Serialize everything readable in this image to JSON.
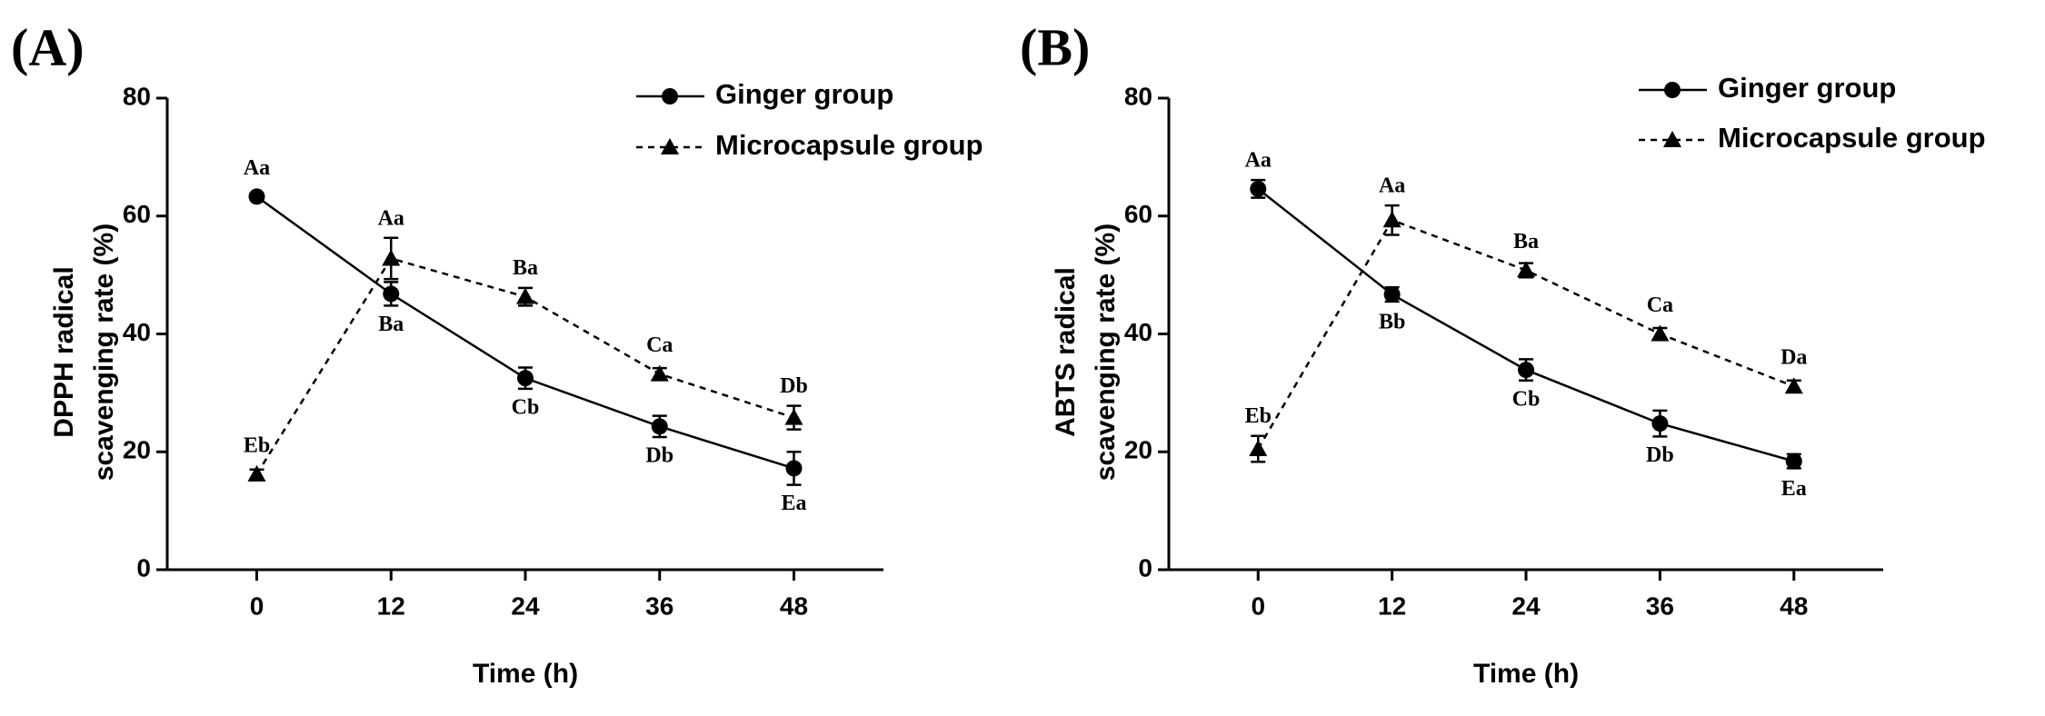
{
  "chart_data": [
    {
      "type": "line",
      "panel": "(A)",
      "ylabel": [
        "DPPH radical",
        "scavenging rate (%)"
      ],
      "xlabel": "Time (h)",
      "x": [
        0,
        12,
        24,
        36,
        48
      ],
      "xlim": [
        -8,
        56
      ],
      "xticks": [
        0,
        12,
        24,
        36,
        48
      ],
      "ylim": [
        0,
        80
      ],
      "yticks": [
        0,
        20,
        40,
        60,
        80
      ],
      "series": [
        {
          "name": "Ginger group",
          "color": "#000000",
          "marker": "circle",
          "dash": false,
          "values": [
            63.3,
            46.8,
            32.5,
            24.3,
            17.2
          ],
          "errors": [
            0.5,
            2.0,
            1.8,
            1.8,
            2.8
          ],
          "annotations": [
            "Aa",
            "Ba",
            "Cb",
            "Db",
            "Ea"
          ]
        },
        {
          "name": "Microcapsule group",
          "color": "#000000",
          "marker": "triangle",
          "dash": true,
          "values": [
            16.2,
            52.8,
            46.3,
            33.2,
            25.8
          ],
          "errors": [
            0.8,
            3.5,
            1.5,
            1.0,
            2.0
          ],
          "annotations": [
            "Eb",
            "Aa",
            "Ba",
            "Ca",
            "Db"
          ]
        }
      ]
    },
    {
      "type": "line",
      "panel": "(B)",
      "ylabel": [
        "ABTS radical",
        "scavenging rate (%)"
      ],
      "xlabel": "Time (h)",
      "x": [
        0,
        12,
        24,
        36,
        48
      ],
      "xlim": [
        -8,
        56
      ],
      "xticks": [
        0,
        12,
        24,
        36,
        48
      ],
      "ylim": [
        0,
        80
      ],
      "yticks": [
        0,
        20,
        40,
        60,
        80
      ],
      "series": [
        {
          "name": "Ginger group",
          "color": "#000000",
          "marker": "circle",
          "dash": false,
          "values": [
            64.6,
            46.7,
            33.9,
            24.8,
            18.4
          ],
          "errors": [
            1.5,
            1.2,
            1.8,
            2.2,
            1.2
          ],
          "annotations": [
            "Aa",
            "Bb",
            "Cb",
            "Db",
            "Ea"
          ]
        },
        {
          "name": "Microcapsule group",
          "color": "#000000",
          "marker": "triangle",
          "dash": true,
          "values": [
            20.5,
            59.3,
            50.8,
            40.0,
            31.1
          ],
          "errors": [
            2.2,
            2.5,
            1.2,
            1.0,
            1.0
          ],
          "annotations": [
            "Eb",
            "Aa",
            "Ba",
            "Ca",
            "Da"
          ]
        }
      ]
    }
  ]
}
